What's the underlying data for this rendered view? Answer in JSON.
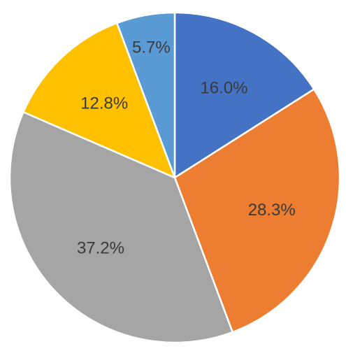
{
  "chart_data": {
    "type": "pie",
    "title": "",
    "values": [
      16.0,
      28.3,
      37.2,
      12.8,
      5.7
    ],
    "labels": [
      "16.0%",
      "28.3%",
      "37.2%",
      "12.8%",
      "5.7%"
    ],
    "colors": [
      "#4472C4",
      "#ED7D31",
      "#A5A5A5",
      "#FFC000",
      "#5B9BD5"
    ],
    "start_angle": "12 o'clock",
    "direction": "clockwise",
    "legend": "none",
    "data_labels": "inside"
  }
}
